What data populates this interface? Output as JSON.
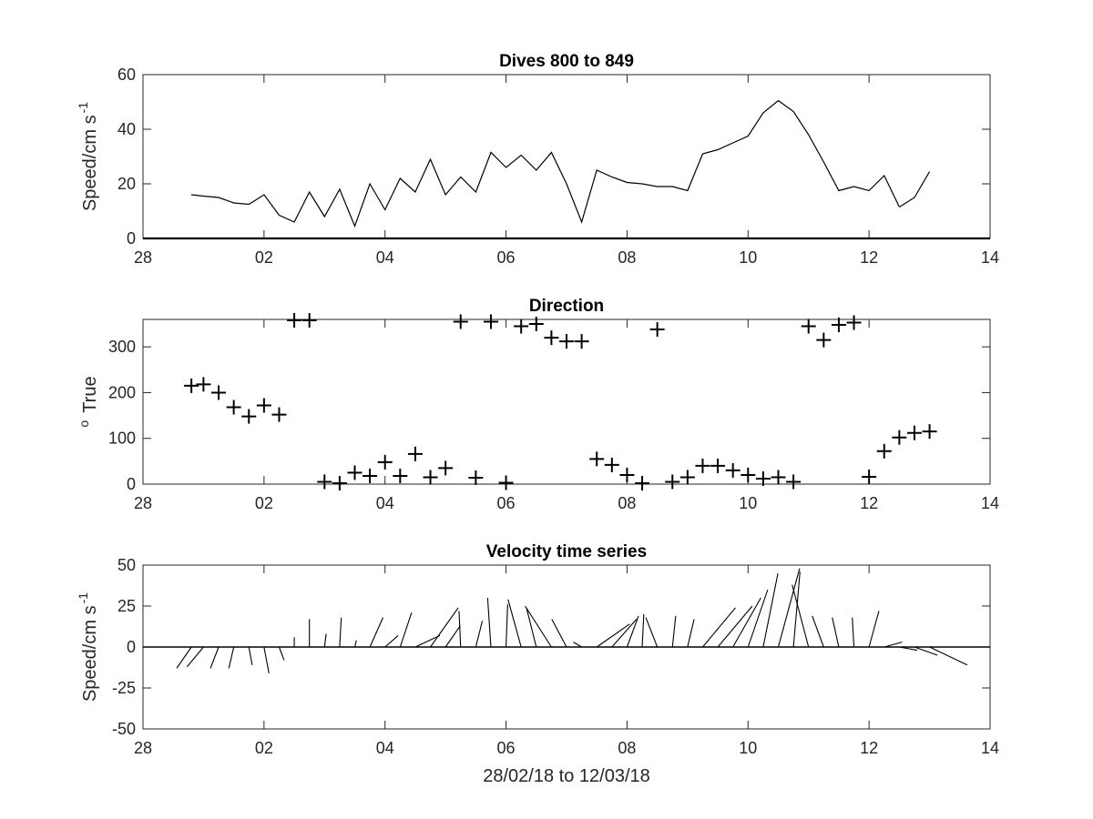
{
  "chart_data": [
    {
      "type": "line",
      "title": "Dives 800 to 849",
      "ylabel": "Speed/cm s",
      "ylabel_sup": "-1",
      "xlim": [
        28,
        42
      ],
      "ylim": [
        0,
        60
      ],
      "xticks": [
        28,
        30,
        32,
        34,
        36,
        38,
        40,
        42
      ],
      "xticklabels": [
        "28",
        "02",
        "04",
        "06",
        "08",
        "10",
        "12",
        "14"
      ],
      "yticks": [
        0,
        20,
        40,
        60
      ],
      "yticklabels": [
        "0",
        "20",
        "40",
        "60"
      ],
      "series": [
        {
          "x": [
            28.8,
            29.0,
            29.25,
            29.5,
            29.75,
            30.0,
            30.25,
            30.5,
            30.75,
            31.0,
            31.25,
            31.5,
            31.75,
            32.0,
            32.25,
            32.5,
            32.75,
            33.0,
            33.25,
            33.5,
            33.75,
            34.0,
            34.25,
            34.5,
            34.75,
            35.0,
            35.25,
            35.5,
            35.75,
            36.0,
            36.25,
            36.5,
            36.75,
            37.0,
            37.25,
            37.5,
            37.75,
            38.0,
            38.25,
            38.5,
            38.75,
            39.0,
            39.25,
            39.5,
            39.75,
            40.0,
            40.25,
            40.5
          ],
          "y": [
            16,
            15.5,
            15,
            13,
            12.5,
            16,
            8.5,
            6,
            17,
            8,
            18,
            4.5,
            20,
            10.5,
            22,
            17,
            29,
            16,
            22.5,
            17,
            31.5,
            26,
            30.5,
            25,
            31.5,
            20,
            6,
            25,
            22.5,
            20.5,
            20,
            19,
            19,
            17.5,
            31,
            32.5,
            35,
            37.5,
            46,
            50.5,
            46.5,
            38,
            28,
            17.5,
            19,
            17.5,
            23,
            11.5
          ]
        },
        {
          "x": [
            40.5,
            40.75,
            41.0
          ],
          "y": [
            11.5,
            15,
            24.5
          ]
        }
      ]
    },
    {
      "type": "scatter",
      "title": "Direction",
      "ylabel": "True",
      "ylabel_pre": "o",
      "xlim": [
        28,
        42
      ],
      "ylim": [
        0,
        360
      ],
      "xticks": [
        28,
        30,
        32,
        34,
        36,
        38,
        40,
        42
      ],
      "xticklabels": [
        "28",
        "02",
        "04",
        "06",
        "08",
        "10",
        "12",
        "14"
      ],
      "yticks": [
        0,
        100,
        200,
        300
      ],
      "yticklabels": [
        "0",
        "100",
        "200",
        "300"
      ],
      "marker": "+",
      "x": [
        28.8,
        29.0,
        29.25,
        29.5,
        29.75,
        30.0,
        30.25,
        30.5,
        30.75,
        31.0,
        31.25,
        31.5,
        31.75,
        32.0,
        32.25,
        32.5,
        32.75,
        33.0,
        33.25,
        33.5,
        33.75,
        34.0,
        34.25,
        34.5,
        34.75,
        35.0,
        35.25,
        35.5,
        35.75,
        36.0,
        36.25,
        36.5,
        36.75,
        37.0,
        37.25,
        37.5,
        37.75,
        38.0,
        38.25,
        38.5,
        38.75,
        39.0,
        39.25,
        39.5,
        39.75,
        40.0,
        40.25,
        40.5,
        40.75,
        41.0
      ],
      "y": [
        215,
        218,
        200,
        168,
        148,
        172,
        152,
        358,
        358,
        5,
        2,
        25,
        18,
        48,
        18,
        66,
        15,
        35,
        355,
        14,
        355,
        3,
        345,
        350,
        320,
        312,
        312,
        55,
        42,
        20,
        2,
        338,
        5,
        15,
        40,
        40,
        30,
        20,
        12,
        15,
        5,
        345,
        315,
        348,
        353,
        16,
        72,
        102,
        112,
        115
      ]
    },
    {
      "type": "stick",
      "title": "Velocity time series",
      "ylabel": "Speed/cm s",
      "ylabel_sup": "-1",
      "xlabel": "28/02/18 to 12/03/18",
      "xlim": [
        28,
        42
      ],
      "ylim": [
        -50,
        50
      ],
      "xticks": [
        28,
        30,
        32,
        34,
        36,
        38,
        40,
        42
      ],
      "xticklabels": [
        "28",
        "02",
        "04",
        "06",
        "08",
        "10",
        "12",
        "14"
      ],
      "yticks": [
        -50,
        -25,
        0,
        25,
        50
      ],
      "yticklabels": [
        "-50",
        "-25",
        "0",
        "25",
        "50"
      ],
      "sticks": [
        {
          "x": 28.8,
          "u": -9,
          "v": -13
        },
        {
          "x": 29.0,
          "u": -10,
          "v": -12
        },
        {
          "x": 29.25,
          "u": -5,
          "v": -13
        },
        {
          "x": 29.5,
          "u": -3,
          "v": -13
        },
        {
          "x": 29.75,
          "u": 2,
          "v": -11
        },
        {
          "x": 30.0,
          "u": 3,
          "v": -16
        },
        {
          "x": 30.25,
          "u": 3,
          "v": -8
        },
        {
          "x": 30.5,
          "u": 0,
          "v": 6
        },
        {
          "x": 30.75,
          "u": 0,
          "v": 17
        },
        {
          "x": 31.0,
          "u": 1,
          "v": 8
        },
        {
          "x": 31.25,
          "u": 1,
          "v": 18
        },
        {
          "x": 31.5,
          "u": 1,
          "v": 4
        },
        {
          "x": 31.75,
          "u": 8,
          "v": 18
        },
        {
          "x": 32.0,
          "u": 8,
          "v": 7
        },
        {
          "x": 32.25,
          "u": 7,
          "v": 21
        },
        {
          "x": 32.5,
          "u": 15,
          "v": 7
        },
        {
          "x": 32.75,
          "u": 17,
          "v": 24
        },
        {
          "x": 33.0,
          "u": 9,
          "v": 13
        },
        {
          "x": 33.25,
          "u": -1,
          "v": 22
        },
        {
          "x": 33.5,
          "u": 4,
          "v": 16
        },
        {
          "x": 33.75,
          "u": -2,
          "v": 30
        },
        {
          "x": 34.0,
          "u": 1,
          "v": 26
        },
        {
          "x": 34.25,
          "u": -8,
          "v": 29
        },
        {
          "x": 34.5,
          "u": -6,
          "v": 24
        },
        {
          "x": 34.75,
          "u": -16,
          "v": 25
        },
        {
          "x": 35.0,
          "u": -9,
          "v": 17
        },
        {
          "x": 35.25,
          "u": -5,
          "v": 3
        },
        {
          "x": 35.5,
          "u": 20,
          "v": 14
        },
        {
          "x": 35.75,
          "u": 15,
          "v": 17
        },
        {
          "x": 36.0,
          "u": 7,
          "v": 19
        },
        {
          "x": 36.25,
          "u": 1,
          "v": 20
        },
        {
          "x": 36.5,
          "u": -7,
          "v": 18
        },
        {
          "x": 36.75,
          "u": 2,
          "v": 19
        },
        {
          "x": 37.0,
          "u": 4,
          "v": 17
        },
        {
          "x": 37.25,
          "u": 20,
          "v": 24
        },
        {
          "x": 37.5,
          "u": 21,
          "v": 25
        },
        {
          "x": 37.75,
          "u": 17,
          "v": 30
        },
        {
          "x": 38.0,
          "u": 12,
          "v": 35
        },
        {
          "x": 38.25,
          "u": 9,
          "v": 45
        },
        {
          "x": 38.5,
          "u": 13,
          "v": 48
        },
        {
          "x": 38.75,
          "u": 4,
          "v": 46
        },
        {
          "x": 39.0,
          "u": -10,
          "v": 38
        },
        {
          "x": 39.25,
          "u": -7,
          "v": 19
        },
        {
          "x": 39.5,
          "u": -4,
          "v": 18
        },
        {
          "x": 39.75,
          "u": -1,
          "v": 18
        },
        {
          "x": 40.0,
          "u": 6,
          "v": 22
        },
        {
          "x": 40.25,
          "u": 11,
          "v": 3
        },
        {
          "x": 40.5,
          "u": 11,
          "v": -2
        },
        {
          "x": 40.75,
          "u": 14,
          "v": -5
        },
        {
          "x": 41.0,
          "u": 23,
          "v": -11
        }
      ]
    }
  ]
}
